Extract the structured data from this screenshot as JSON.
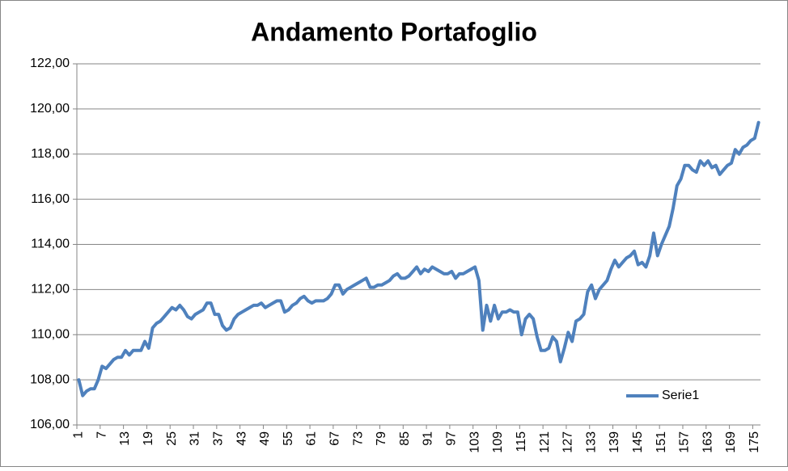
{
  "chart_data": {
    "type": "line",
    "title": "Andamento Portafoglio",
    "categories": [
      "1",
      null,
      null,
      null,
      null,
      null,
      "7",
      null,
      null,
      null,
      null,
      null,
      "13",
      null,
      null,
      null,
      null,
      null,
      "19",
      null,
      null,
      null,
      null,
      null,
      "25",
      null,
      null,
      null,
      null,
      null,
      "31",
      null,
      null,
      null,
      null,
      null,
      "37",
      null,
      null,
      null,
      null,
      null,
      "43",
      null,
      null,
      null,
      null,
      null,
      "49",
      null,
      null,
      null,
      null,
      null,
      "55",
      null,
      null,
      null,
      null,
      null,
      "61",
      null,
      null,
      null,
      null,
      null,
      "67",
      null,
      null,
      null,
      null,
      null,
      "73",
      null,
      null,
      null,
      null,
      null,
      "79",
      null,
      null,
      null,
      null,
      null,
      "85",
      null,
      null,
      null,
      null,
      null,
      "91",
      null,
      null,
      null,
      null,
      null,
      "97",
      null,
      null,
      null,
      null,
      null,
      "103",
      null,
      null,
      null,
      null,
      null,
      "109",
      null,
      null,
      null,
      null,
      null,
      "115",
      null,
      null,
      null,
      null,
      null,
      "121",
      null,
      null,
      null,
      null,
      null,
      "127",
      null,
      null,
      null,
      null,
      null,
      "133",
      null,
      null,
      null,
      null,
      null,
      "139",
      null,
      null,
      null,
      null,
      null,
      "145",
      null,
      null,
      null,
      null,
      null,
      "151",
      null,
      null,
      null,
      null,
      null,
      "157",
      null,
      null,
      null,
      null,
      null,
      "163",
      null,
      null,
      null,
      null,
      null,
      "169",
      null,
      null,
      null,
      null,
      null,
      "175",
      null
    ],
    "series": [
      {
        "name": "Serie1",
        "color": "#4f81bd",
        "values": [
          108.0,
          107.3,
          107.5,
          107.6,
          107.6,
          108.0,
          108.6,
          108.5,
          108.7,
          108.9,
          109.0,
          109.0,
          109.3,
          109.1,
          109.3,
          109.3,
          109.3,
          109.7,
          109.4,
          110.3,
          110.5,
          110.6,
          110.8,
          111.0,
          111.2,
          111.1,
          111.3,
          111.1,
          110.8,
          110.7,
          110.9,
          111.0,
          111.1,
          111.4,
          111.4,
          110.9,
          110.9,
          110.4,
          110.2,
          110.3,
          110.7,
          110.9,
          111.0,
          111.1,
          111.2,
          111.3,
          111.3,
          111.4,
          111.2,
          111.3,
          111.4,
          111.5,
          111.5,
          111.0,
          111.1,
          111.3,
          111.4,
          111.6,
          111.7,
          111.5,
          111.4,
          111.5,
          111.5,
          111.5,
          111.6,
          111.8,
          112.2,
          112.2,
          111.8,
          112.0,
          112.1,
          112.2,
          112.3,
          112.4,
          112.5,
          112.1,
          112.1,
          112.2,
          112.2,
          112.3,
          112.4,
          112.6,
          112.7,
          112.5,
          112.5,
          112.6,
          112.8,
          113.0,
          112.7,
          112.9,
          112.8,
          113.0,
          112.9,
          112.8,
          112.7,
          112.7,
          112.8,
          112.5,
          112.7,
          112.7,
          112.8,
          112.9,
          113.0,
          112.4,
          110.2,
          111.3,
          110.6,
          111.3,
          110.7,
          111.0,
          111.0,
          111.1,
          111.0,
          111.0,
          110.0,
          110.7,
          110.9,
          110.7,
          109.9,
          109.3,
          109.3,
          109.4,
          109.9,
          109.7,
          108.8,
          109.4,
          110.1,
          109.7,
          110.6,
          110.7,
          110.9,
          111.9,
          112.2,
          111.6,
          112.0,
          112.2,
          112.4,
          112.9,
          113.3,
          113.0,
          113.2,
          113.4,
          113.5,
          113.7,
          113.1,
          113.2,
          113.0,
          113.5,
          114.5,
          113.5,
          114.0,
          114.4,
          114.8,
          115.6,
          116.6,
          116.9,
          117.5,
          117.5,
          117.3,
          117.2,
          117.7,
          117.5,
          117.7,
          117.4,
          117.5,
          117.1,
          117.3,
          117.5,
          117.6,
          118.2,
          118.0,
          118.3,
          118.4,
          118.6,
          118.7,
          119.4
        ]
      }
    ],
    "ylim": [
      106,
      122
    ],
    "yticks": [
      {
        "value": 106,
        "label": "106,00"
      },
      {
        "value": 108,
        "label": "108,00"
      },
      {
        "value": 110,
        "label": "110,00"
      },
      {
        "value": 112,
        "label": "112,00"
      },
      {
        "value": 114,
        "label": "114,00"
      },
      {
        "value": 116,
        "label": "116,00"
      },
      {
        "value": 118,
        "label": "118,00"
      },
      {
        "value": 120,
        "label": "120,00"
      },
      {
        "value": 122,
        "label": "122,00"
      }
    ],
    "grid": true,
    "legend": "lower right"
  }
}
